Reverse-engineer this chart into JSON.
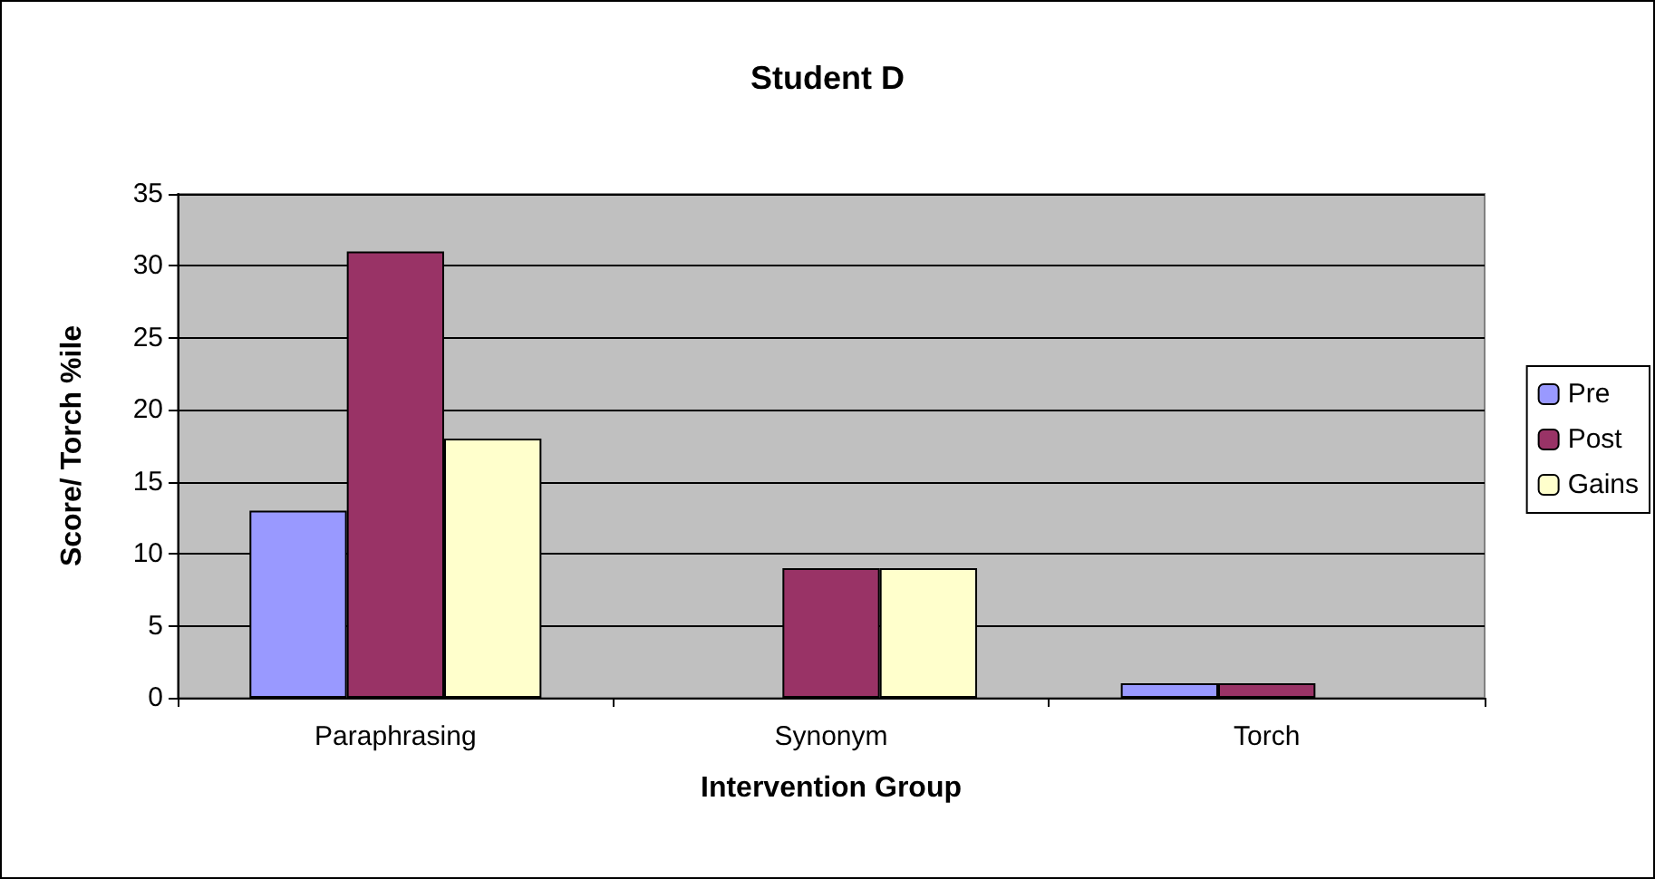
{
  "chart_data": {
    "type": "bar",
    "title": "Student D",
    "xlabel": "Intervention Group",
    "ylabel": "Score/ Torch %ile",
    "categories": [
      "Paraphrasing",
      "Synonym",
      "Torch"
    ],
    "series": [
      {
        "name": "Pre",
        "color": "#9999ff",
        "values": [
          13,
          0,
          1
        ]
      },
      {
        "name": "Post",
        "color": "#993366",
        "values": [
          31,
          9,
          1
        ]
      },
      {
        "name": "Gains",
        "color": "#ffffcc",
        "values": [
          18,
          9,
          0
        ]
      }
    ],
    "ylim": [
      0,
      35
    ],
    "yticks": [
      0,
      5,
      10,
      15,
      20,
      25,
      30,
      35
    ],
    "grid": "y",
    "legend": "right"
  }
}
